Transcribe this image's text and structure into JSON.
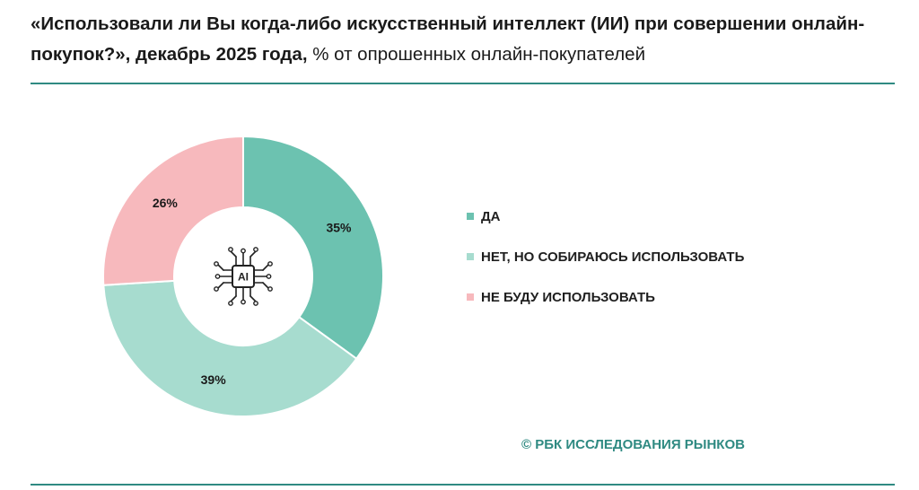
{
  "header": {
    "title_bold": "«Использовали ли Вы когда-либо искусственный интеллект (ИИ) при совершении онлайн-покупок?», декабрь 2025 года,",
    "title_normal": " % от опрошенных онлайн-покупателей"
  },
  "center_icon": {
    "name": "ai-chip-icon",
    "label": "AI"
  },
  "chart_data": {
    "type": "pie",
    "style": "donut",
    "slices": [
      {
        "label": "ДА",
        "value": 35,
        "display": "35%",
        "color": "#6cc2b0"
      },
      {
        "label": "НЕТ, НО СОБИРАЮСЬ ИСПОЛЬЗОВАТЬ",
        "value": 39,
        "display": "39%",
        "color": "#a7dccf"
      },
      {
        "label": "НЕ БУДУ ИСПОЛЬЗОВАТЬ",
        "value": 26,
        "display": "26%",
        "color": "#f7b9bd"
      }
    ],
    "legend_position": "right"
  },
  "source": "© РБК ИССЛЕДОВАНИЯ РЫНКОВ"
}
